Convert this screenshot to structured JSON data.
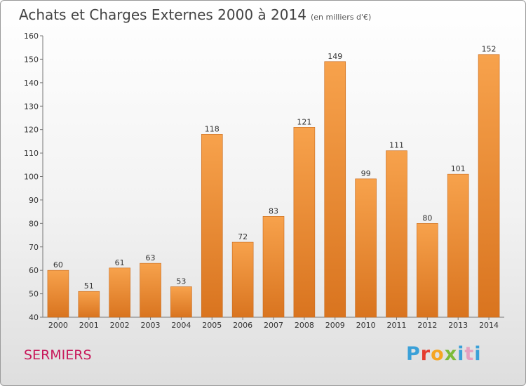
{
  "header": {
    "title": "Achats et Charges Externes 2000 à 2014",
    "subtitle": "(en milliers d'€)"
  },
  "footer": {
    "town": "SERMIERS",
    "logo_text": "Proxiti"
  },
  "colors": {
    "bar_light": "#f7a24c",
    "bar_dark": "#d9741f",
    "town": "#c8185a"
  },
  "chart_data": {
    "type": "bar",
    "title": "Achats et Charges Externes 2000 à 2014",
    "subtitle": "(en milliers d'€)",
    "xlabel": "",
    "ylabel": "",
    "categories": [
      "2000",
      "2001",
      "2002",
      "2003",
      "2004",
      "2005",
      "2006",
      "2007",
      "2008",
      "2009",
      "2010",
      "2011",
      "2012",
      "2013",
      "2014"
    ],
    "values": [
      60,
      51,
      61,
      63,
      53,
      118,
      72,
      83,
      121,
      149,
      99,
      111,
      80,
      101,
      152
    ],
    "data_labels": [
      "60",
      "51",
      "61",
      "63",
      "53",
      "118",
      "72",
      "83",
      "121",
      "149",
      "99",
      "111",
      "80",
      "101",
      "152"
    ],
    "ylim": [
      40,
      160
    ],
    "yticks": [
      "40",
      "50",
      "60",
      "70",
      "80",
      "90",
      "100",
      "110",
      "120",
      "130",
      "140",
      "150",
      "160"
    ],
    "grid": false,
    "legend": "none"
  }
}
